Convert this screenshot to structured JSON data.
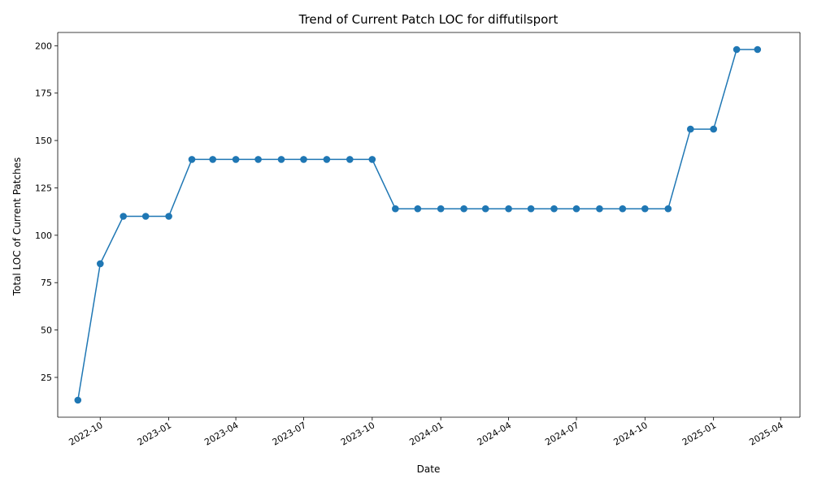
{
  "chart_data": {
    "type": "line",
    "title": "Trend of Current Patch LOC for diffutilsport",
    "xlabel": "Date",
    "ylabel": "Total LOC of Current Patches",
    "grid": false,
    "legend": "none",
    "x_axis_type": "date",
    "xlim": [
      "2022-08-05",
      "2025-04-27"
    ],
    "ylim": [
      4,
      207
    ],
    "x_ticks": [
      "2022-10",
      "2023-01",
      "2023-04",
      "2023-07",
      "2023-10",
      "2024-01",
      "2024-04",
      "2024-07",
      "2024-10",
      "2025-01",
      "2025-04"
    ],
    "y_ticks": [
      25,
      50,
      75,
      100,
      125,
      150,
      175,
      200
    ],
    "series": [
      {
        "color": "#1f77b4",
        "marker": "circle",
        "x": [
          "2022-09-01",
          "2022-10-01",
          "2022-11-01",
          "2022-12-01",
          "2023-01-01",
          "2023-02-01",
          "2023-03-01",
          "2023-04-01",
          "2023-05-01",
          "2023-06-01",
          "2023-07-01",
          "2023-08-01",
          "2023-09-01",
          "2023-10-01",
          "2023-11-01",
          "2023-12-01",
          "2024-01-01",
          "2024-02-01",
          "2024-03-01",
          "2024-04-01",
          "2024-05-01",
          "2024-06-01",
          "2024-07-01",
          "2024-08-01",
          "2024-09-01",
          "2024-10-01",
          "2024-11-01",
          "2024-12-01",
          "2025-01-01",
          "2025-02-01",
          "2025-03-01"
        ],
        "y": [
          13,
          85,
          110,
          110,
          110,
          140,
          140,
          140,
          140,
          140,
          140,
          140,
          140,
          140,
          114,
          114,
          114,
          114,
          114,
          114,
          114,
          114,
          114,
          114,
          114,
          114,
          114,
          156,
          156,
          198,
          198
        ]
      }
    ]
  }
}
